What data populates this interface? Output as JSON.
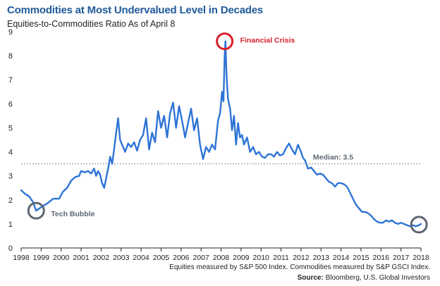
{
  "chart_data": {
    "type": "line",
    "title": "Commodities at Most Undervalued Level in Decades",
    "subtitle": "Equities-to-Commodities Ratio As of April 8",
    "xlabel": "",
    "ylabel": "",
    "xlim": [
      1998,
      2018
    ],
    "ylim": [
      0,
      9
    ],
    "x_ticks": [
      "1998",
      "1999",
      "2000",
      "2001",
      "2002",
      "2003",
      "2004",
      "2005",
      "2006",
      "2007",
      "2008",
      "2009",
      "2010",
      "2011",
      "2012",
      "2013",
      "2014",
      "2015",
      "2016",
      "2017",
      "2018"
    ],
    "y_ticks": [
      "0",
      "1",
      "2",
      "3",
      "4",
      "5",
      "6",
      "7",
      "8",
      "9"
    ],
    "series": [
      {
        "name": "Equities-to-Commodities Ratio",
        "color": "#2e74d6",
        "x": [
          1998.0,
          1998.2,
          1998.4,
          1998.6,
          1998.75,
          1999.0,
          1999.3,
          1999.6,
          1999.9,
          2000.1,
          2000.3,
          2000.5,
          2000.7,
          2000.9,
          2001.0,
          2001.2,
          2001.35,
          2001.5,
          2001.65,
          2001.75,
          2001.85,
          2001.95,
          2002.05,
          2002.15,
          2002.25,
          2002.35,
          2002.45,
          2002.55,
          2002.65,
          2002.75,
          2002.85,
          2002.95,
          2003.05,
          2003.2,
          2003.35,
          2003.5,
          2003.65,
          2003.8,
          2003.95,
          2004.1,
          2004.25,
          2004.4,
          2004.55,
          2004.7,
          2004.85,
          2005.0,
          2005.15,
          2005.3,
          2005.45,
          2005.6,
          2005.75,
          2005.9,
          2006.05,
          2006.2,
          2006.35,
          2006.5,
          2006.65,
          2006.8,
          2006.95,
          2007.1,
          2007.25,
          2007.4,
          2007.55,
          2007.7,
          2007.85,
          2007.95,
          2008.05,
          2008.12,
          2008.18,
          2008.22,
          2008.28,
          2008.35,
          2008.45,
          2008.55,
          2008.65,
          2008.75,
          2008.85,
          2008.95,
          2009.05,
          2009.15,
          2009.3,
          2009.45,
          2009.6,
          2009.75,
          2009.9,
          2010.05,
          2010.2,
          2010.35,
          2010.5,
          2010.65,
          2010.8,
          2010.95,
          2011.1,
          2011.25,
          2011.4,
          2011.55,
          2011.7,
          2011.85,
          2012.0,
          2012.1,
          2012.2,
          2012.35,
          2012.5,
          2012.65,
          2012.8,
          2012.95,
          2013.1,
          2013.25,
          2013.4,
          2013.55,
          2013.7,
          2013.85,
          2014.0,
          2014.15,
          2014.3,
          2014.45,
          2014.6,
          2014.75,
          2014.9,
          2015.05,
          2015.2,
          2015.35,
          2015.5,
          2015.65,
          2015.8,
          2015.95,
          2016.1,
          2016.25,
          2016.4,
          2016.55,
          2016.7,
          2016.85,
          2017.0,
          2017.15,
          2017.3,
          2017.45,
          2017.6,
          2017.75,
          2017.9,
          2018.0
        ],
        "values": [
          2.4,
          2.25,
          2.15,
          1.9,
          1.55,
          1.7,
          1.85,
          2.05,
          2.05,
          2.35,
          2.5,
          2.8,
          2.95,
          3.0,
          3.2,
          3.15,
          3.2,
          3.1,
          3.3,
          3.0,
          3.2,
          3.05,
          2.7,
          2.5,
          2.9,
          3.3,
          3.8,
          3.5,
          4.1,
          4.8,
          5.4,
          4.5,
          4.3,
          4.0,
          4.35,
          4.2,
          4.4,
          4.05,
          4.5,
          4.7,
          5.4,
          4.1,
          4.8,
          4.4,
          5.7,
          5.0,
          5.5,
          4.6,
          5.6,
          6.05,
          5.0,
          5.9,
          5.3,
          4.6,
          5.2,
          5.8,
          4.9,
          5.4,
          4.3,
          3.7,
          4.2,
          4.0,
          4.3,
          4.1,
          5.3,
          5.6,
          6.5,
          6.1,
          8.0,
          8.6,
          7.1,
          6.2,
          5.8,
          4.9,
          5.5,
          4.3,
          5.2,
          4.6,
          4.7,
          4.3,
          4.6,
          4.0,
          4.2,
          3.9,
          4.0,
          3.8,
          3.75,
          3.9,
          3.9,
          3.8,
          4.0,
          3.85,
          3.9,
          4.15,
          4.35,
          4.1,
          3.9,
          4.3,
          4.0,
          3.75,
          3.65,
          3.3,
          3.35,
          3.2,
          3.05,
          3.1,
          3.05,
          2.9,
          2.75,
          2.7,
          2.55,
          2.7,
          2.7,
          2.65,
          2.55,
          2.3,
          2.05,
          1.8,
          1.65,
          1.5,
          1.5,
          1.45,
          1.35,
          1.2,
          1.1,
          1.05,
          1.05,
          1.15,
          1.1,
          1.15,
          1.05,
          1.0,
          1.05,
          1.0,
          0.95,
          0.9,
          0.95,
          0.9,
          0.95,
          1.0
        ]
      }
    ],
    "median": {
      "value": 3.5,
      "label": "Median: 3.5",
      "color": "#8a8f96"
    },
    "annotations": [
      {
        "label": "Financial Crisis",
        "x": 2008.18,
        "y": 8.6,
        "color": "#d9202c"
      },
      {
        "label": "Tech Bubble",
        "x": 1998.75,
        "y": 1.55,
        "color": "#5e6772"
      },
      {
        "label": "",
        "x": 2017.9,
        "y": 0.97,
        "color": "#5e6772"
      }
    ],
    "notes": {
      "footnote": "Equities measured by S&P 500 Index. Commodities measured by S&P GSCI Index.",
      "source_label": "Source:",
      "source_text": " Bloomberg, U.S. Global Investors"
    }
  }
}
